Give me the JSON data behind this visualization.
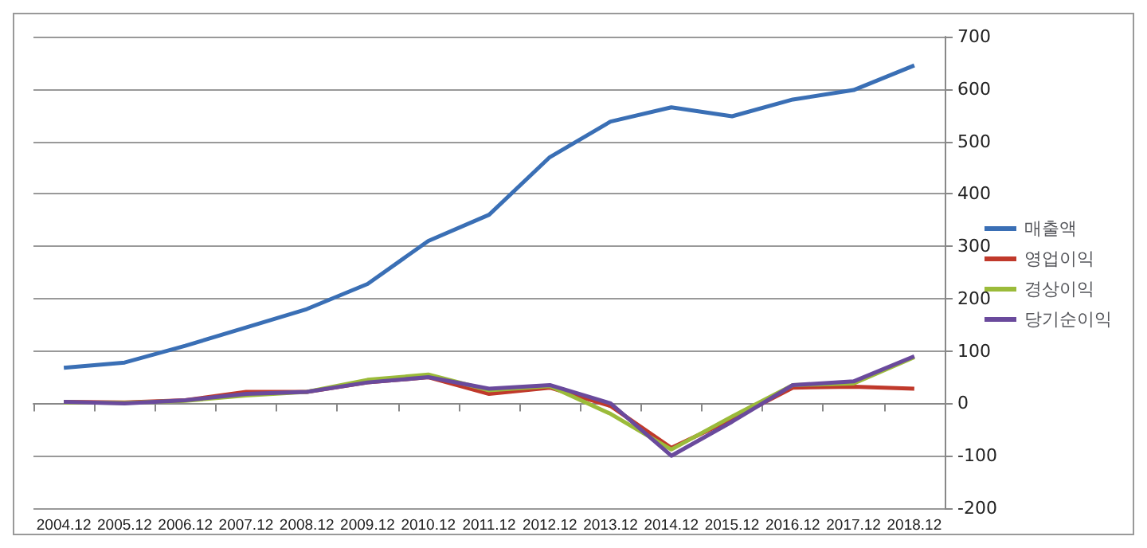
{
  "chart_data": {
    "type": "line",
    "categories": [
      "2004.12",
      "2005.12",
      "2006.12",
      "2007.12",
      "2008.12",
      "2009.12",
      "2010.12",
      "2011.12",
      "2012.12",
      "2013.12",
      "2014.12",
      "2015.12",
      "2016.12",
      "2017.12",
      "2018.12"
    ],
    "series": [
      {
        "name": "매출액",
        "color": "#3a6fb5",
        "values": [
          68,
          78,
          110,
          145,
          180,
          228,
          310,
          360,
          470,
          538,
          565,
          548,
          580,
          598,
          645
        ]
      },
      {
        "name": "영업이익",
        "color": "#c0392b",
        "values": [
          3,
          2,
          6,
          22,
          22,
          40,
          50,
          18,
          30,
          -5,
          -85,
          -30,
          30,
          32,
          28
        ]
      },
      {
        "name": "경상이익",
        "color": "#9bbb3a",
        "values": [
          2,
          1,
          5,
          15,
          22,
          45,
          55,
          25,
          33,
          -20,
          -88,
          -25,
          35,
          38,
          88
        ]
      },
      {
        "name": "당기순이익",
        "color": "#6a4a9c",
        "values": [
          3,
          0,
          6,
          18,
          22,
          40,
          50,
          28,
          35,
          0,
          -100,
          -35,
          35,
          42,
          90
        ]
      }
    ],
    "ylim": [
      -200,
      700
    ],
    "yticks": [
      -200,
      -100,
      0,
      100,
      200,
      300,
      400,
      500,
      600,
      700
    ],
    "grid": "y",
    "legend": "right",
    "marker": "none",
    "line_style": "solid"
  }
}
